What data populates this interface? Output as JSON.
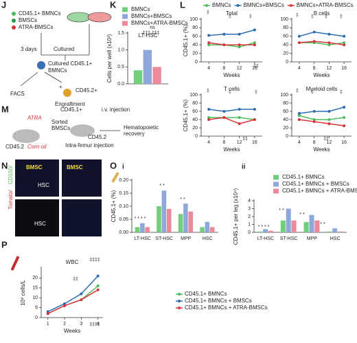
{
  "panel_labels": [
    "J",
    "K",
    "L",
    "M",
    "N",
    "O",
    "P",
    "i",
    "ii"
  ],
  "diagram_J": {
    "legend": [
      "CD45.1+ BMNCs",
      "BMSCs",
      "ATRA-BMSCs"
    ],
    "steps": [
      "3 days",
      "Cultured",
      "Cultured CD45.1+",
      "BMNCs",
      "FACS",
      "+",
      "Engraftment",
      "CD45.2+"
    ]
  },
  "diagram_M": {
    "texts": [
      "CD45.1+",
      "i.v. injection",
      "ATRA",
      "Sorted",
      "BMSCs",
      "CD45.2",
      "Corn oil",
      "CD45.2",
      "Intra-femur injection",
      "Hematopoietic",
      "recovery"
    ]
  },
  "image_N": {
    "labels": [
      "BMSC",
      "HSC",
      "BMSC",
      "HSC"
    ],
    "stain": [
      "Tomato/",
      "CD150/"
    ]
  },
  "chart_data": [
    {
      "type": "bar",
      "title": "LT-HSC",
      "y_label": "Cells per well (x10³)",
      "categories": [
        null
      ],
      "series": [
        {
          "name": "BMNCs",
          "color": "#6fcf7a",
          "values": [
            0.4
          ]
        },
        {
          "name": "BMNCs+BMSCs",
          "color": "#8fa8dc",
          "values": [
            1.0
          ]
        },
        {
          "name": "BMNCs+ATRA-BMSCs",
          "color": "#ec8a99",
          "values": [
            0.5
          ]
        }
      ],
      "ylim": [
        0,
        1.5
      ],
      "yticks": [
        {
          "value": 0,
          "label": "0.0"
        },
        0.5,
        {
          "value": 1,
          "label": "1.0"
        },
        1.5
      ],
      "legend": "top",
      "annotations": [
        "ns",
        "‡‡‡ ‡‡‡"
      ]
    },
    {
      "type": "line",
      "title": "Total",
      "y_label": "CD45.1+ (%)",
      "x_label": "Weeks",
      "x": [
        4,
        8,
        12,
        16
      ],
      "xlim": [
        2,
        18
      ],
      "xticks": [
        4,
        8,
        12,
        16
      ],
      "series": [
        {
          "name": "BMNCs",
          "color": "#4cbb5a",
          "values": [
            40,
            40,
            35,
            45
          ]
        },
        {
          "name": "BMNCs+BMSCs",
          "color": "#2a6cb0",
          "values": [
            62,
            65,
            65,
            75
          ]
        },
        {
          "name": "BMNCs+ATRA-BMSCs",
          "color": "#d8333b",
          "values": [
            45,
            40,
            40,
            40
          ]
        }
      ],
      "ylim": [
        0,
        100
      ],
      "yticks": [
        0,
        20,
        40,
        60,
        80,
        100
      ],
      "legend": "top",
      "annotations": [
        "‡",
        "‡",
        "‡",
        "‡‡"
      ]
    },
    {
      "type": "line",
      "title": "B cells",
      "x_label": "Weeks",
      "x": [
        4,
        8,
        12,
        16
      ],
      "xlim": [
        2,
        18
      ],
      "xticks": [
        4,
        8,
        12,
        16
      ],
      "series": [
        {
          "name": "BMNCs",
          "color": "#4cbb5a",
          "values": [
            45,
            45,
            40,
            45
          ]
        },
        {
          "name": "BMNCs+BMSCs",
          "color": "#2a6cb0",
          "values": [
            60,
            70,
            65,
            60
          ]
        },
        {
          "name": "BMNCs+ATRA-BMSCs",
          "color": "#d8333b",
          "values": [
            45,
            48,
            45,
            40
          ]
        }
      ],
      "ylim": [
        0,
        100
      ],
      "yticks": [
        0,
        20,
        40,
        60,
        80,
        100
      ],
      "annotations": [
        "‡",
        "‡",
        "‡",
        "‡"
      ]
    },
    {
      "type": "line",
      "title": "T cells",
      "y_label": "CD45.1+ (%)",
      "x_label": "Weeks",
      "x": [
        4,
        8,
        12,
        16
      ],
      "xlim": [
        2,
        18
      ],
      "xticks": [
        4,
        8,
        12,
        16
      ],
      "series": [
        {
          "name": "BMNCs",
          "color": "#4cbb5a",
          "values": [
            45,
            45,
            45,
            40
          ]
        },
        {
          "name": "BMNCs+BMSCs",
          "color": "#2a6cb0",
          "values": [
            65,
            60,
            65,
            65
          ]
        },
        {
          "name": "BMNCs+ATRA-BMSCs",
          "color": "#d8333b",
          "values": [
            40,
            45,
            30,
            40
          ]
        }
      ],
      "ylim": [
        0,
        100
      ],
      "yticks": [
        0,
        20,
        40,
        60,
        80,
        100
      ],
      "annotations": [
        "‡",
        "‡",
        "‡‡",
        "‡"
      ]
    },
    {
      "type": "line",
      "title": "Myeloid cells",
      "x_label": "Weeks",
      "x": [
        4,
        8,
        12,
        16
      ],
      "xlim": [
        2,
        18
      ],
      "xticks": [
        4,
        8,
        12,
        16
      ],
      "series": [
        {
          "name": "BMNCs",
          "color": "#4cbb5a",
          "values": [
            50,
            40,
            40,
            45
          ]
        },
        {
          "name": "BMNCs+BMSCs",
          "color": "#2a6cb0",
          "values": [
            55,
            60,
            60,
            70
          ]
        },
        {
          "name": "BMNCs+ATRA-BMSCs",
          "color": "#d8333b",
          "values": [
            40,
            35,
            30,
            25
          ]
        }
      ],
      "ylim": [
        0,
        100
      ],
      "yticks": [
        0,
        20,
        40,
        60,
        80,
        100
      ],
      "annotations": [
        "‡",
        "‡",
        "‡‡",
        "‡"
      ]
    },
    {
      "type": "bar",
      "y_label": "CD45.1+ (%)",
      "categories": [
        "LT-HSC",
        "ST-HSC",
        "MPP",
        "HSC"
      ],
      "series": [
        {
          "name": "CD45.1+ BMNCs",
          "color": "#6fcf7a",
          "values": [
            0.02,
            0.1,
            0.07,
            0.02
          ]
        },
        {
          "name": "CD45.1+ BMNCs + BMSCs",
          "color": "#8fa8dc",
          "values": [
            0.035,
            0.16,
            0.11,
            0.04
          ]
        },
        {
          "name": "CD45.1+ BMNCs + ATRA-BMSCs",
          "color": "#ec8a99",
          "values": [
            0.02,
            0.09,
            0.08,
            0.02
          ]
        }
      ],
      "ylim": [
        0,
        0.2
      ],
      "yticks": [
        {
          "value": 0,
          "label": "0.00"
        },
        0.05,
        {
          "value": 0.1,
          "label": "0.10"
        },
        0.15,
        {
          "value": 0.2,
          "label": "0.20"
        }
      ],
      "annotations": [
        "* * * *",
        "* *",
        "* *"
      ]
    },
    {
      "type": "bar",
      "y_label": "CD45.1+ per leg (x10⁴)",
      "categories": [
        "LT-HSC",
        "ST-HSC",
        "MPP",
        "HSC"
      ],
      "series": [
        {
          "name": "CD45.1+ BMNCs",
          "color": "#6fcf7a",
          "values": [
            0.1,
            1.5,
            1.3,
            0.1
          ]
        },
        {
          "name": "CD45.1+ BMNCs + BMSCs",
          "color": "#8fa8dc",
          "values": [
            0.4,
            3.0,
            2.2,
            0.5
          ]
        },
        {
          "name": "CD45.1+ BMNCs + ATRA-BMSCs",
          "color": "#ec8a99",
          "values": [
            0.2,
            1.5,
            1.5,
            0.1
          ]
        }
      ],
      "ylim": [
        0,
        4
      ],
      "yticks": [
        0,
        1,
        2,
        3,
        4
      ],
      "legend": "top right",
      "annotations": [
        "* * * *",
        "* *",
        "* *",
        "* *"
      ]
    },
    {
      "type": "line",
      "title": "WBC",
      "y_label": "10⁹ cells/L",
      "x_label": "Weeks",
      "x": [
        1,
        2,
        3,
        4
      ],
      "xlim": [
        0.6,
        4.3
      ],
      "xticks": [
        1,
        2,
        3,
        4
      ],
      "series": [
        {
          "name": "CD45.1+ BMNCs",
          "color": "#4cbb5a",
          "values": [
            2,
            6,
            9,
            16
          ]
        },
        {
          "name": "CD45.1+ BMNCs + BMSCs",
          "color": "#2a6cb0",
          "values": [
            3,
            7,
            12,
            21
          ]
        },
        {
          "name": "CD45.1+ BMNCs + ATRA-BMSCs",
          "color": "#d8333b",
          "values": [
            2,
            6,
            9,
            14
          ]
        }
      ],
      "ylim": [
        0,
        25
      ],
      "yticks": [
        0,
        5,
        10,
        15,
        20
      ],
      "legend": "right",
      "annotations": [
        "‡‡‡‡",
        "‡‡",
        "‡‡‡‡"
      ]
    }
  ]
}
